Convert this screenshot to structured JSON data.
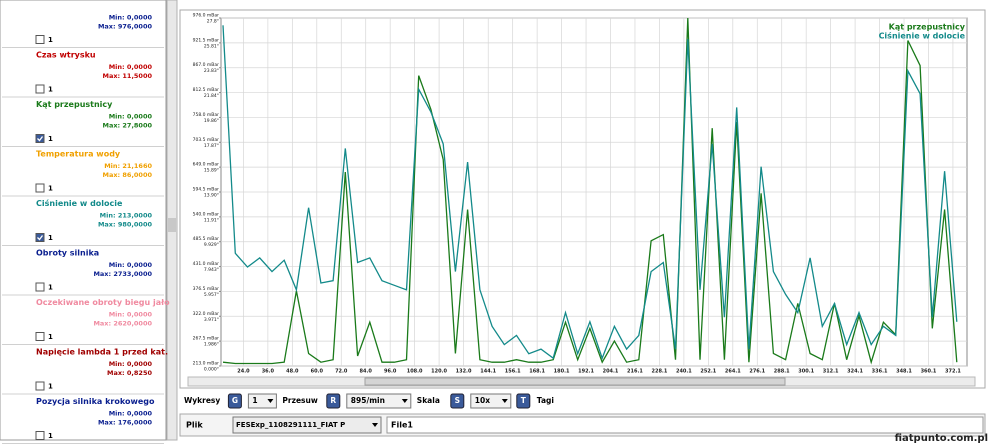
{
  "sidebar": {
    "items": [
      {
        "color": "#0a1f8f",
        "min": "Min: 0,0000",
        "max": "Max: 976,0000",
        "checkbox": "1",
        "checked": false
      },
      {
        "name": "Czas wtrysku",
        "color": "#c00000",
        "min": "Min: 0,0000",
        "max": "Max: 11,5000",
        "checkbox": "1",
        "checked": false
      },
      {
        "name": "Kąt przepustnicy",
        "color": "#1a7a1a",
        "min": "Min: 0,0000",
        "max": "Max: 27,8000",
        "checkbox": "1",
        "checked": true
      },
      {
        "name": "Temperatura wody",
        "color": "#f0a000",
        "min": "Min: 21,1660",
        "max": "Max: 86,0000",
        "checkbox": "1",
        "checked": false
      },
      {
        "name": "Ciśnienie w dolocie",
        "color": "#138a8a",
        "min": "Min: 213,0000",
        "max": "Max: 980,0000",
        "checkbox": "1",
        "checked": true
      },
      {
        "name": "Obroty silnika",
        "color": "#0a1f8f",
        "min": "Min: 0,0000",
        "max": "Max: 2733,0000",
        "checkbox": "1",
        "checked": false
      },
      {
        "name": "Oczekiwane obroty biegu jało",
        "color": "#f08aa0",
        "min": "Min: 0,0000",
        "max": "Max: 2620,0000",
        "checkbox": "1",
        "checked": false
      },
      {
        "name": "Napięcie lambda 1 przed kat.",
        "color": "#a00000",
        "min": "Min: 0,0000",
        "max": "Max: 0,8250",
        "checkbox": "1",
        "checked": false
      },
      {
        "name": "Pozycja silnika krokowego",
        "color": "#0a1f8f",
        "min": "Min: 0,0000",
        "max": "Max: 176,0000",
        "checkbox": "1",
        "checked": false
      }
    ]
  },
  "chart_data": {
    "type": "line",
    "grid": true,
    "legend": "top-right",
    "xlim": [
      13,
      379
    ],
    "xticks": [
      {
        "value": 24,
        "label": "24.0"
      },
      {
        "value": 36,
        "label": "36.0"
      },
      {
        "value": 48,
        "label": "48.0"
      },
      {
        "value": 60,
        "label": "60.0"
      },
      {
        "value": 72,
        "label": "72.0"
      },
      {
        "value": 84,
        "label": "84.0"
      },
      {
        "value": 96,
        "label": "96.0"
      },
      {
        "value": 108,
        "label": "108.0"
      },
      {
        "value": 120,
        "label": "120.0"
      },
      {
        "value": 132,
        "label": "132.0"
      },
      144.1,
      156.1,
      168.1,
      180.1,
      192.1,
      204.1,
      216.1,
      228.1,
      240.1,
      252.1,
      264.1,
      276.1,
      288.1,
      300.1,
      312.1,
      324.1,
      336.1,
      348.1,
      360.1,
      372.1
    ],
    "ylim": [
      213,
      976
    ],
    "yticks": [
      {
        "value": 213,
        "label": "213.0 mBar"
      },
      {
        "value": 267.5,
        "label": "267.5 mBar"
      },
      {
        "value": 322,
        "label": "322.0 mBar"
      },
      {
        "value": 376.5,
        "label": "376.5 mBar"
      },
      {
        "value": 431,
        "label": "431.0 mBar"
      },
      {
        "value": 485.5,
        "label": "485.5 mBar"
      },
      {
        "value": 540,
        "label": "540.0 mBar"
      },
      {
        "value": 594.5,
        "label": "594.5 mBar"
      },
      {
        "value": 649,
        "label": "649.0 mBar"
      },
      {
        "value": 703.5,
        "label": "703.5 mBar"
      },
      {
        "value": 758,
        "label": "758.0 mBar"
      },
      {
        "value": 812.5,
        "label": "812.5 mBar"
      },
      {
        "value": 867,
        "label": "867.0 mBar"
      },
      {
        "value": 921.5,
        "label": "921.5 mBar"
      },
      {
        "value": 976,
        "label": "976.0 mBar"
      }
    ],
    "y2lim": [
      0,
      27.8
    ],
    "y2ticks": [
      {
        "value": 0,
        "label": "0.000°"
      },
      {
        "value": 1.986,
        "label": "1.986°"
      },
      {
        "value": 3.971,
        "label": "3.971°"
      },
      {
        "value": 5.957,
        "label": "5.957°"
      },
      {
        "value": 7.943,
        "label": "7.943°"
      },
      {
        "value": 9.929,
        "label": "9.929°"
      },
      {
        "value": 11.914,
        "label": "11.91°"
      },
      {
        "value": 13.9,
        "label": "13.90°"
      },
      {
        "value": 15.886,
        "label": "15.89°"
      },
      {
        "value": 17.871,
        "label": "17.87°"
      },
      {
        "value": 19.857,
        "label": "19.86°"
      },
      {
        "value": 21.843,
        "label": "21.84°"
      },
      {
        "value": 23.829,
        "label": "23.83°"
      },
      {
        "value": 25.814,
        "label": "25.81°"
      },
      {
        "value": 27.8,
        "label": "27.8°"
      }
    ],
    "x": [
      14,
      20,
      26,
      32,
      38,
      44,
      50,
      56,
      62,
      68,
      74,
      80,
      86,
      92,
      98,
      104,
      110,
      116,
      122,
      128,
      134,
      140,
      146,
      152,
      158,
      164,
      170,
      176,
      182,
      188,
      194,
      200,
      206,
      212,
      218,
      224,
      230,
      236,
      242,
      248,
      254,
      260,
      266,
      272,
      278,
      284,
      290,
      296,
      302,
      308,
      314,
      320,
      326,
      332,
      338,
      344,
      350,
      356,
      362,
      368,
      374
    ],
    "series": [
      {
        "name": "Kąt przepustnicy",
        "color": "#1a7a1a",
        "axis": "y2",
        "values": [
          0.3,
          0.2,
          0.2,
          0.2,
          0.2,
          0.3,
          6.0,
          1.0,
          0.3,
          0.5,
          15.5,
          0.8,
          3.5,
          0.3,
          0.3,
          0.5,
          23.2,
          20.5,
          16.5,
          1.0,
          12.5,
          0.5,
          0.3,
          0.3,
          0.5,
          0.3,
          0.3,
          0.5,
          3.5,
          0.5,
          3.0,
          0.3,
          2.0,
          0.3,
          0.5,
          10.0,
          10.5,
          0.5,
          27.8,
          0.5,
          19.0,
          0.5,
          19.5,
          0.3,
          13.8,
          1.0,
          0.5,
          5.0,
          1.0,
          0.5,
          5.0,
          0.5,
          4.0,
          0.3,
          3.5,
          2.5,
          26.0,
          24.0,
          3.0,
          12.5,
          0.3
        ]
      },
      {
        "name": "Ciśnienie w dolocie",
        "color": "#138a8a",
        "values": [
          960,
          460,
          430,
          450,
          420,
          445,
          380,
          560,
          395,
          400,
          690,
          440,
          450,
          400,
          390,
          380,
          820,
          770,
          700,
          420,
          660,
          380,
          300,
          260,
          280,
          240,
          250,
          230,
          330,
          240,
          310,
          230,
          300,
          250,
          280,
          420,
          440,
          250,
          930,
          380,
          700,
          320,
          780,
          250,
          650,
          420,
          370,
          330,
          450,
          300,
          350,
          260,
          330,
          260,
          300,
          280,
          860,
          810,
          320,
          640,
          310
        ]
      }
    ]
  },
  "toolbar": [
    {
      "kind": "label",
      "text": "Wykresy"
    },
    {
      "kind": "button",
      "text": "G"
    },
    {
      "kind": "dropdown",
      "text": "1"
    },
    {
      "kind": "label",
      "text": "Przesuw"
    },
    {
      "kind": "button",
      "text": "R"
    },
    {
      "kind": "dropdown",
      "text": "895/min"
    },
    {
      "kind": "label",
      "text": "Skala"
    },
    {
      "kind": "button",
      "text": "S"
    },
    {
      "kind": "dropdown",
      "text": "10x"
    },
    {
      "kind": "button",
      "text": "T"
    },
    {
      "kind": "label",
      "text": "Tagi"
    }
  ],
  "file_row": {
    "label": "Plik",
    "file": "FESExp_1108291111_FIAT P",
    "name": "File1"
  },
  "watermark": "fiatpunto.com.pl"
}
